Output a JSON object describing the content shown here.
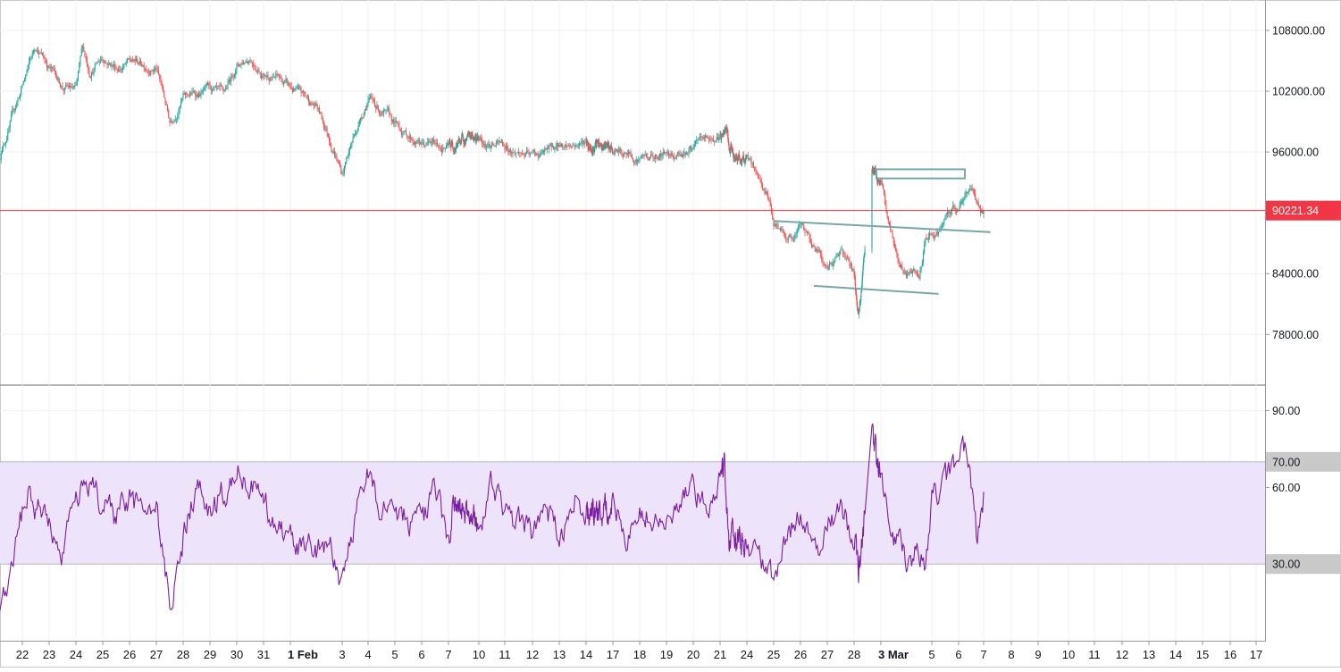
{
  "chart_data": [
    {
      "type": "candlestick",
      "symbol": "",
      "ylim": [
        73000,
        111000
      ],
      "y_ticks": [
        "108000.00",
        "102000.00",
        "96000.00",
        "84000.00",
        "78000.00"
      ],
      "last_price": 90221.34,
      "last_price_label": "90221.34",
      "colors": {
        "up": "#26a69a",
        "down": "#ef5350",
        "price_line": "#f23645",
        "drawing": "#78a7a8"
      },
      "path_anchors": [
        [
          "22 Jan",
          102500
        ],
        [
          "22 Jan 12:00",
          106500
        ],
        [
          "23 Jan",
          104500
        ],
        [
          "23 Jan 12:00",
          102500
        ],
        [
          "24 Jan",
          102000
        ],
        [
          "24 Jan 06:00",
          106000
        ],
        [
          "24 Jan 12:00",
          104000
        ],
        [
          "25 Jan",
          105500
        ],
        [
          "25 Jan 12:00",
          104500
        ],
        [
          "26 Jan",
          104800
        ],
        [
          "27 Jan",
          104500
        ],
        [
          "27 Jan 12:00",
          99000
        ],
        [
          "28 Jan",
          101500
        ],
        [
          "29 Jan",
          102000
        ],
        [
          "29 Jan 12:00",
          101000
        ],
        [
          "30 Jan",
          104500
        ],
        [
          "30 Jan 12:00",
          105500
        ],
        [
          "31 Jan",
          104000
        ],
        [
          "31 Jan 12:00",
          103500
        ],
        [
          "1 Feb",
          102200
        ],
        [
          "2 Feb",
          100500
        ],
        [
          "2 Feb 18:00",
          96000
        ],
        [
          "3 Feb",
          94000
        ],
        [
          "3 Feb 12:00",
          98000
        ],
        [
          "4 Feb",
          101500
        ],
        [
          "5 Feb",
          98500
        ],
        [
          "6 Feb",
          96800
        ],
        [
          "7 Feb",
          96500
        ],
        [
          "8 Feb",
          97000
        ],
        [
          "10 Feb",
          97500
        ],
        [
          "11 Feb",
          96500
        ],
        [
          "12 Feb",
          95500
        ],
        [
          "13 Feb",
          96500
        ],
        [
          "14 Feb",
          97000
        ],
        [
          "17 Feb",
          96000
        ],
        [
          "18 Feb",
          95500
        ],
        [
          "19 Feb",
          95800
        ],
        [
          "20 Feb",
          96500
        ],
        [
          "21 Feb",
          97500
        ],
        [
          "21 Feb 18:00",
          98000
        ],
        [
          "22 Feb",
          96000
        ],
        [
          "24 Feb",
          95000
        ],
        [
          "24 Feb 18:00",
          92000
        ],
        [
          "25 Feb",
          89000
        ],
        [
          "25 Feb 18:00",
          87500
        ],
        [
          "26 Feb",
          88500
        ],
        [
          "26 Feb 18:00",
          86000
        ],
        [
          "27 Feb",
          84500
        ],
        [
          "27 Feb 12:00",
          86500
        ],
        [
          "27 Feb 18:00",
          85000
        ],
        [
          "28 Feb",
          84000
        ],
        [
          "28 Feb 06:00",
          81500
        ],
        [
          "28 Feb 12:00",
          80000
        ],
        [
          "28 Feb 18:00",
          82000
        ],
        [
          "1 Mar",
          84500
        ],
        [
          "2 Mar",
          94500
        ],
        [
          "2 Mar 12:00",
          93500
        ],
        [
          "3 Mar",
          93000
        ],
        [
          "3 Mar 06:00",
          89500
        ],
        [
          "3 Mar 18:00",
          85000
        ],
        [
          "4 Mar",
          84000
        ],
        [
          "4 Mar 12:00",
          83500
        ],
        [
          "4 Mar 18:00",
          87000
        ],
        [
          "5 Mar",
          87500
        ],
        [
          "5 Mar 12:00",
          89000
        ],
        [
          "6 Mar",
          90500
        ],
        [
          "6 Mar 12:00",
          92500
        ],
        [
          "6 Mar 18:00",
          91000
        ],
        [
          "7 Mar",
          90221
        ]
      ]
    },
    {
      "type": "line",
      "indicator": "RSI",
      "ylim": [
        0,
        100
      ],
      "y_ticks": [
        "90.00",
        "60.00"
      ],
      "band": [
        30,
        70
      ],
      "band_labels": [
        "70.00",
        "30.00"
      ],
      "colors": {
        "line": "#7b1fa2",
        "band_fill": "#ede3fa",
        "band_line": "#b8b8b8"
      },
      "path_anchors": [
        [
          "22 Jan",
          50
        ],
        [
          "22 Jan 06:00",
          62
        ],
        [
          "22 Jan 12:00",
          52
        ],
        [
          "23 Jan",
          48
        ],
        [
          "23 Jan 06:00",
          38
        ],
        [
          "23 Jan 12:00",
          32
        ],
        [
          "24 Jan",
          55
        ],
        [
          "24 Jan 12:00",
          62
        ],
        [
          "25 Jan",
          52
        ],
        [
          "25 Jan 12:00",
          48
        ],
        [
          "26 Jan",
          55
        ],
        [
          "26 Jan 12:00",
          50
        ],
        [
          "27 Jan",
          50
        ],
        [
          "27 Jan 06:00",
          30
        ],
        [
          "27 Jan 12:00",
          15
        ],
        [
          "28 Jan",
          40
        ],
        [
          "28 Jan 12:00",
          60
        ],
        [
          "29 Jan",
          50
        ],
        [
          "29 Jan 12:00",
          58
        ],
        [
          "30 Jan",
          68
        ],
        [
          "30 Jan 12:00",
          60
        ],
        [
          "31 Jan",
          55
        ],
        [
          "31 Jan 12:00",
          45
        ],
        [
          "1 Feb",
          40
        ],
        [
          "2 Feb",
          35
        ],
        [
          "2 Feb 12:00",
          38
        ],
        [
          "3 Feb",
          22
        ],
        [
          "3 Feb 12:00",
          50
        ],
        [
          "4 Feb",
          66
        ],
        [
          "4 Feb 12:00",
          50
        ],
        [
          "5 Feb",
          52
        ],
        [
          "6 Feb",
          45
        ],
        [
          "6 Feb 12:00",
          58
        ],
        [
          "7 Feb",
          40
        ],
        [
          "7 Feb 12:00",
          55
        ],
        [
          "10 Feb",
          45
        ],
        [
          "10 Feb 12:00",
          60
        ],
        [
          "11 Feb",
          50
        ],
        [
          "12 Feb",
          42
        ],
        [
          "12 Feb 12:00",
          55
        ],
        [
          "13 Feb",
          38
        ],
        [
          "13 Feb 12:00",
          58
        ],
        [
          "14 Feb",
          48
        ],
        [
          "17 Feb",
          52
        ],
        [
          "17 Feb 12:00",
          42
        ],
        [
          "18 Feb",
          50
        ],
        [
          "19 Feb",
          45
        ],
        [
          "19 Feb 12:00",
          55
        ],
        [
          "20 Feb",
          58
        ],
        [
          "20 Feb 12:00",
          52
        ],
        [
          "21 Feb",
          65
        ],
        [
          "21 Feb 12:00",
          70
        ],
        [
          "22 Feb",
          40
        ],
        [
          "24 Feb",
          38
        ],
        [
          "24 Feb 12:00",
          30
        ],
        [
          "25 Feb",
          22
        ],
        [
          "25 Feb 12:00",
          40
        ],
        [
          "26 Feb",
          50
        ],
        [
          "26 Feb 12:00",
          35
        ],
        [
          "27 Feb",
          42
        ],
        [
          "27 Feb 12:00",
          55
        ],
        [
          "28 Feb",
          38
        ],
        [
          "28 Feb 12:00",
          28
        ],
        [
          "1 Mar",
          40
        ],
        [
          "1 Mar 12:00",
          60
        ],
        [
          "2 Mar",
          80
        ],
        [
          "2 Mar 12:00",
          72
        ],
        [
          "3 Mar",
          65
        ],
        [
          "3 Mar 06:00",
          55
        ],
        [
          "3 Mar 12:00",
          40
        ],
        [
          "4 Mar",
          32
        ],
        [
          "4 Mar 12:00",
          35
        ],
        [
          "4 Mar 18:00",
          28
        ],
        [
          "5 Mar",
          55
        ],
        [
          "5 Mar 12:00",
          62
        ],
        [
          "6 Mar",
          70
        ],
        [
          "6 Mar 06:00",
          74
        ],
        [
          "6 Mar 12:00",
          60
        ],
        [
          "6 Mar 18:00",
          38
        ],
        [
          "7 Mar",
          56
        ]
      ]
    }
  ],
  "x_axis": {
    "labels": [
      "22",
      "23",
      "24",
      "25",
      "26",
      "27",
      "28",
      "29",
      "30",
      "31",
      "1 Feb",
      "3",
      "4",
      "5",
      "6",
      "7",
      "10",
      "11",
      "12",
      "13",
      "14",
      "17",
      "18",
      "19",
      "20",
      "21",
      "24",
      "25",
      "26",
      "27",
      "28",
      "3 Mar",
      "5",
      "6",
      "7",
      "8",
      "9",
      "10",
      "11",
      "12",
      "13",
      "14",
      "15",
      "16",
      "17"
    ],
    "bold_labels": [
      "1 Feb",
      "3 Mar"
    ]
  },
  "drawings": {
    "rectangle": {
      "from": [
        "2 Mar 12:00",
        94300
      ],
      "to": [
        "6 Mar 06:00",
        93400
      ]
    },
    "upper_trendline": {
      "from": [
        "25 Feb",
        89200
      ],
      "to": [
        "7 Mar 06:00",
        88100
      ]
    },
    "lower_trendline": {
      "from": [
        "26 Feb 12:00",
        82800
      ],
      "to": [
        "5 Mar 06:00",
        82000
      ]
    }
  }
}
